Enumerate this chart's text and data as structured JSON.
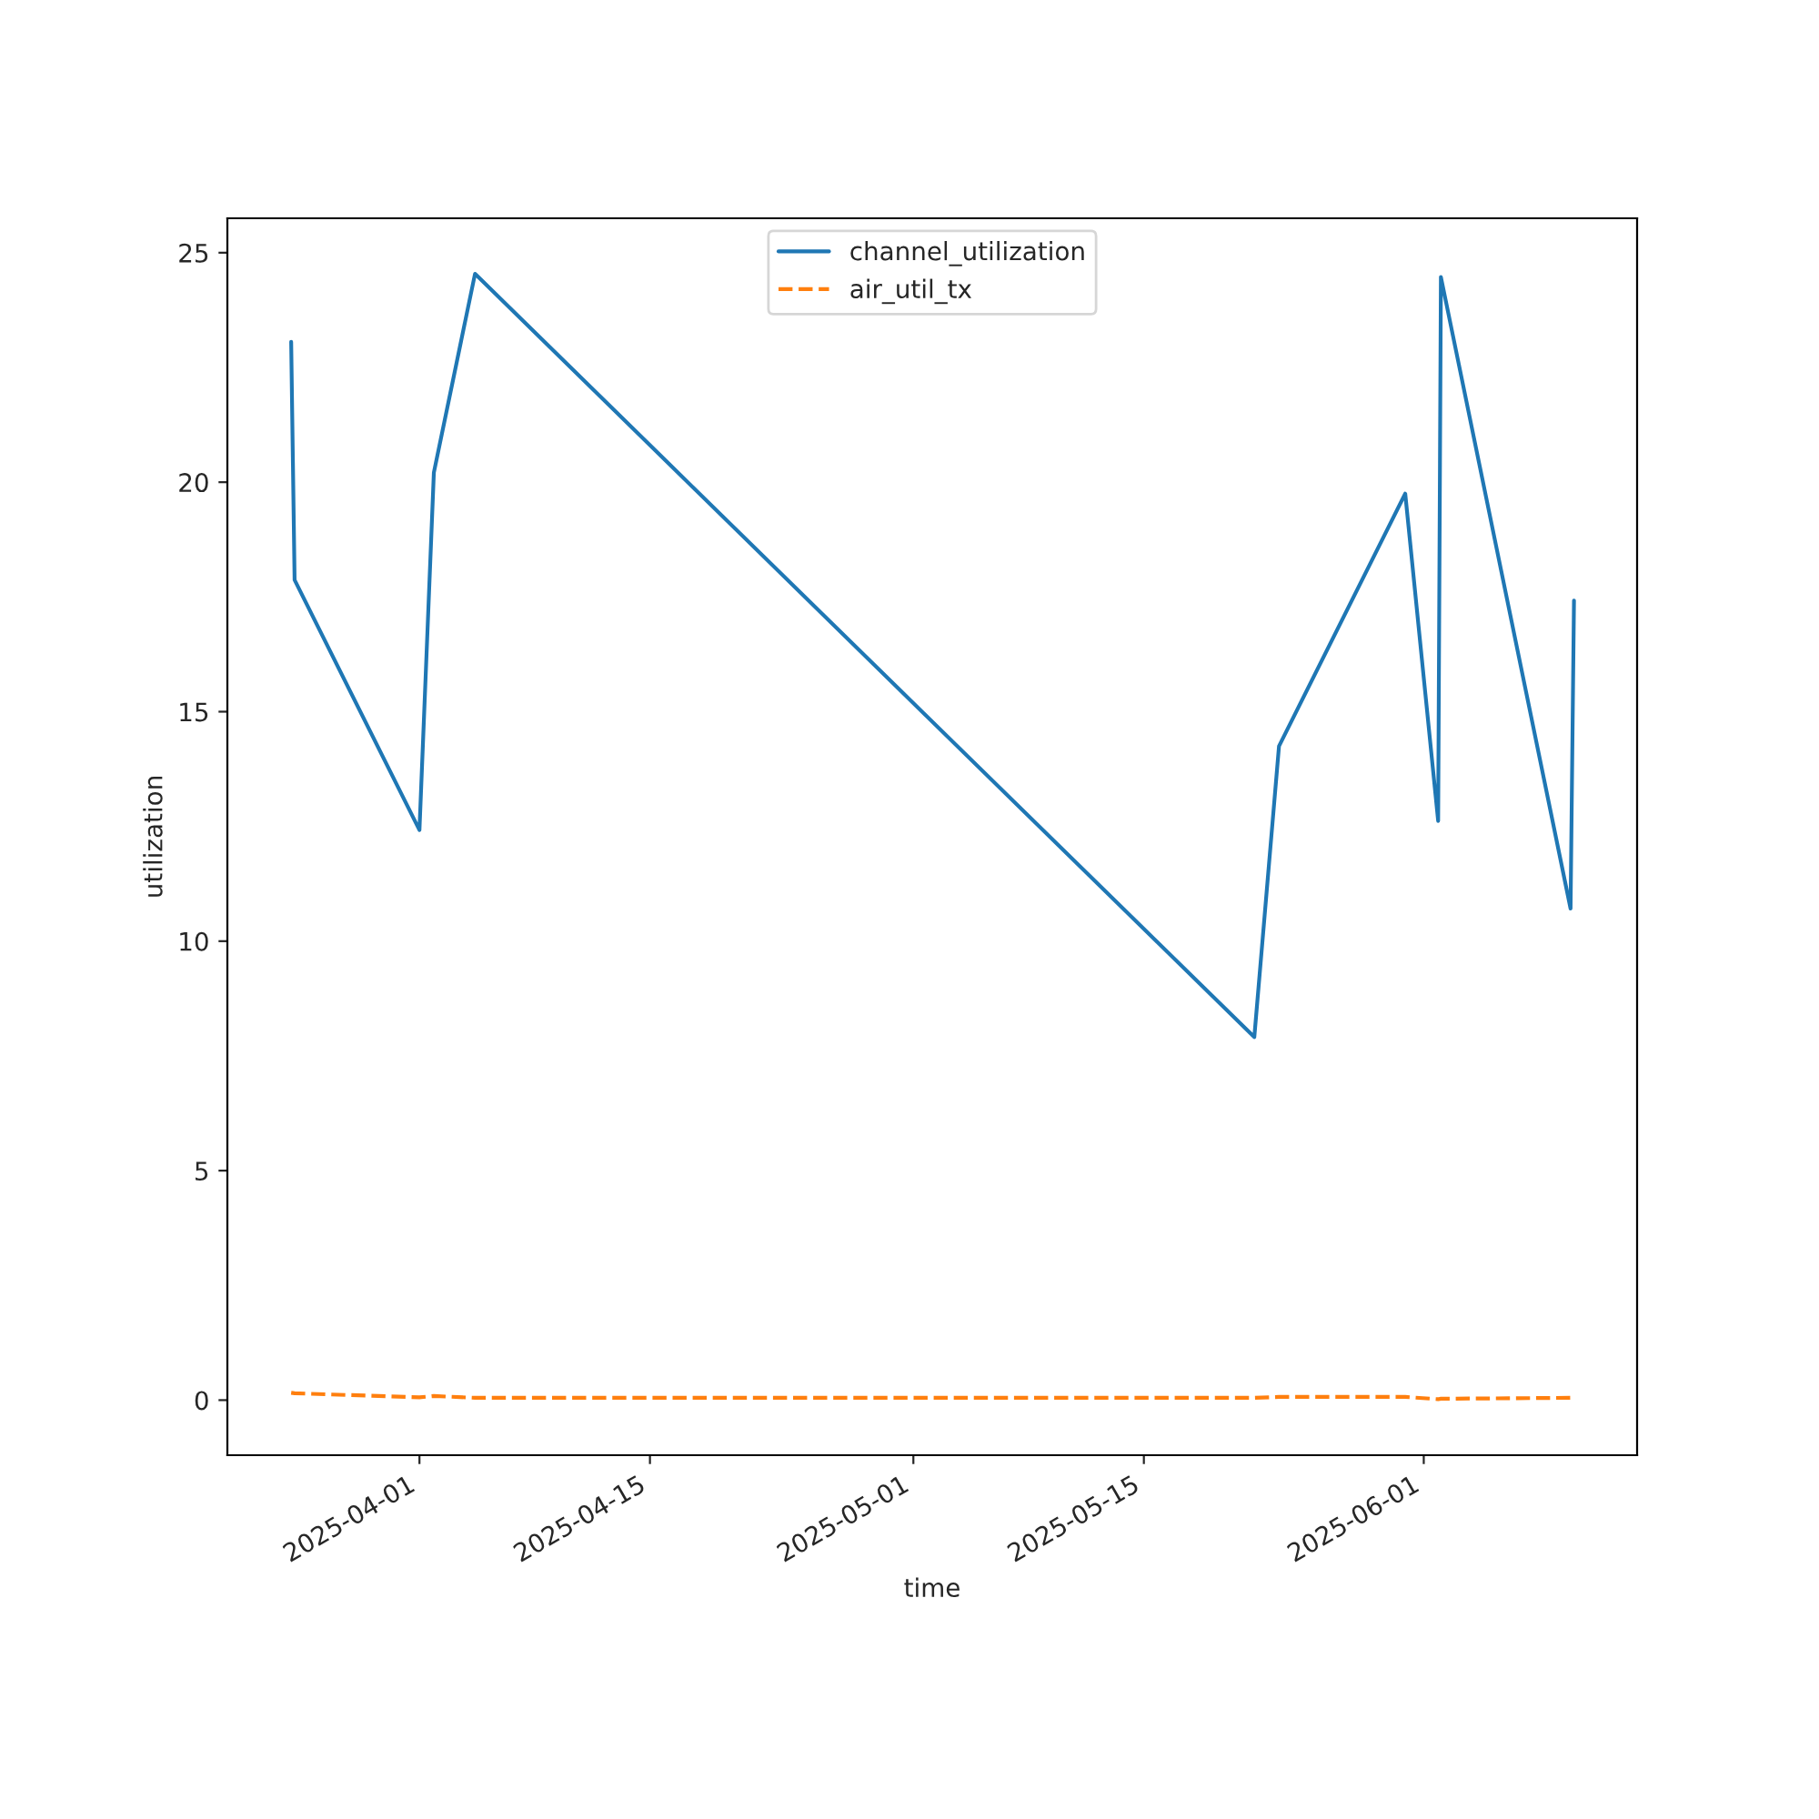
{
  "chart_data": {
    "type": "line",
    "xlabel": "time",
    "ylabel": "utilization",
    "x": [
      "2025-03-24T05:00",
      "2025-03-24T10:00",
      "2025-04-01T00:00",
      "2025-04-01T21:00",
      "2025-04-04T09:00",
      "2025-05-21T17:00",
      "2025-05-23T05:00",
      "2025-05-30T21:00",
      "2025-06-01T21:00",
      "2025-06-02T01:00",
      "2025-06-09T22:00",
      "2025-06-10T03:00"
    ],
    "series": [
      {
        "name": "channel_utilization",
        "color": "#1f77b4",
        "line_style": "solid",
        "values": [
          23.06,
          17.87,
          12.42,
          20.21,
          24.54,
          7.91,
          14.25,
          19.75,
          12.62,
          24.47,
          10.71,
          17.42
        ]
      },
      {
        "name": "air_util_tx",
        "color": "#ff7f0e",
        "line_style": "dashed",
        "values": [
          0.16,
          0.15,
          0.06,
          0.09,
          0.05,
          0.05,
          0.07,
          0.07,
          0.02,
          0.03,
          0.05,
          0.05
        ]
      }
    ],
    "xlim": [
      "2025-03-20T08:00",
      "2025-06-13T23:00"
    ],
    "xticks": [
      "2025-04-01",
      "2025-04-15",
      "2025-05-01",
      "2025-05-15",
      "2025-06-01"
    ],
    "ylim": [
      -1.2,
      25.75
    ],
    "yticks": [
      0,
      5,
      10,
      15,
      20,
      25
    ],
    "grid": false,
    "legend": "upper center"
  }
}
